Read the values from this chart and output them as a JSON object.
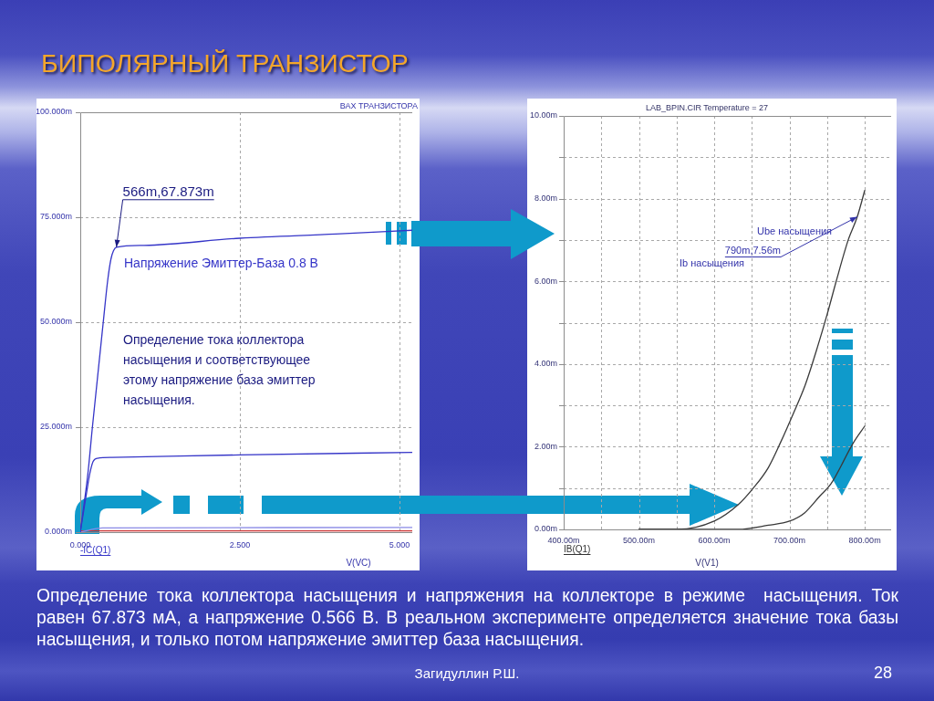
{
  "chart_data": [
    {
      "type": "line",
      "title": "ВАХ ТРАНЗИСТОРА",
      "xlabel": "V(VC)",
      "series": [
        {
          "name": "Напряжение Эмиттер-База 0.8 В",
          "color": "#3535c8",
          "x": [
            0,
            0.12,
            0.19,
            0.36,
            0.43,
            0.48,
            0.52,
            0.566,
            1.0,
            2.5,
            4.0,
            5.2
          ],
          "values": [
            0,
            14,
            25,
            50,
            60,
            65,
            67,
            67.873,
            68.3,
            70,
            71,
            71.9
          ]
        },
        {
          "color": "#3535c8",
          "x": [
            0,
            0.1,
            0.15,
            0.2,
            0.27,
            0.5,
            2.5,
            5.2
          ],
          "values": [
            0,
            9.5,
            14,
            16.8,
            17.6,
            17.8,
            18.4,
            19.0
          ]
        },
        {
          "color": "#8a8ae6",
          "x": [
            0,
            0.35,
            5.2
          ],
          "values": [
            0,
            1.0,
            1.1
          ]
        },
        {
          "color": "#cc3030",
          "x": [
            0,
            5.2
          ],
          "values": [
            0.3,
            0.3
          ]
        }
      ],
      "xlim": [
        0,
        5.2
      ],
      "xticks": [
        {
          "value": 0,
          "label": "0.000"
        },
        {
          "value": 2.5,
          "label": "2.500"
        },
        {
          "value": 5,
          "label": "5.000"
        }
      ],
      "ylim": [
        0,
        100
      ],
      "yticks": [
        {
          "value": 0,
          "label": "0.000m"
        },
        {
          "value": 25,
          "label": "25.000m"
        },
        {
          "value": 50,
          "label": "50.000m"
        },
        {
          "value": 75,
          "label": "75.000m"
        },
        {
          "value": 100,
          "label": "100.000m"
        }
      ],
      "grid": true,
      "annotations": [
        {
          "text": "566m,67.873m",
          "x": 0.566,
          "y": 67.873
        },
        "Определение тока коллектора насыщения и соответствующее этому напряжение база эмиттер насыщения.",
        "-IC(Q1)"
      ]
    },
    {
      "type": "line",
      "title": "LAB_BPIN.CIR Temperature = 27",
      "xlabel": "V(V1)",
      "series": [
        {
          "color": "#3a3a3a",
          "x": [
            500,
            550,
            600,
            632,
            652,
            672,
            688,
            705,
            721,
            737,
            750,
            762,
            778,
            790,
            800
          ],
          "values": [
            0,
            0,
            0.2,
            0.6,
            1.0,
            1.5,
            2.1,
            2.8,
            3.5,
            4.4,
            5.2,
            6.0,
            7.0,
            7.56,
            8.2
          ]
        },
        {
          "color": "#3a3a3a",
          "x": [
            500,
            600,
            632,
            672,
            700,
            720,
            740,
            755,
            785,
            800
          ],
          "values": [
            0,
            0,
            0,
            0.1,
            0.2,
            0.4,
            0.8,
            1.1,
            2.1,
            2.5
          ]
        }
      ],
      "xlim": [
        400,
        835
      ],
      "xticks": [
        {
          "value": 400,
          "label": "400.00m"
        },
        {
          "value": 450,
          "label": null
        },
        {
          "value": 500,
          "label": "500.00m"
        },
        {
          "value": 550,
          "label": null
        },
        {
          "value": 600,
          "label": "600.00m"
        },
        {
          "value": 650,
          "label": null
        },
        {
          "value": 700,
          "label": "700.00m"
        },
        {
          "value": 750,
          "label": null
        },
        {
          "value": 800,
          "label": "800.00m"
        }
      ],
      "ylim": [
        0,
        10
      ],
      "yticks": [
        {
          "value": 0,
          "label": "0.00m"
        },
        {
          "value": 1,
          "label": null
        },
        {
          "value": 2,
          "label": "2.00m"
        },
        {
          "value": 3,
          "label": null
        },
        {
          "value": 4,
          "label": "4.00m"
        },
        {
          "value": 5,
          "label": null
        },
        {
          "value": 6,
          "label": "6.00m"
        },
        {
          "value": 7,
          "label": null
        },
        {
          "value": 8,
          "label": "8.00m"
        },
        {
          "value": 9,
          "label": null
        },
        {
          "value": 10,
          "label": "10.00m"
        }
      ],
      "grid": true,
      "annotations": [
        "Ube насыщения",
        {
          "text": "790m,7.56m",
          "x": 790,
          "y": 7.56
        },
        "Ib насыщения",
        "IB(Q1)"
      ]
    },
    {
      "type": "other",
      "title": "БИПОЛЯРНЫЙ ТРАНЗИСТОР",
      "annotations": [
        "Определение тока коллектора насыщения и напряжения на коллекторе в режиме  насыщения. Ток равен 67.873 мА, а напряжение 0.566 В. В реальном эксперименте определяется значение тока базы насыщения, и только потом напряжение эмиттер база насыщения.",
        "Загидуллин Р.Ш.",
        "28"
      ]
    }
  ]
}
